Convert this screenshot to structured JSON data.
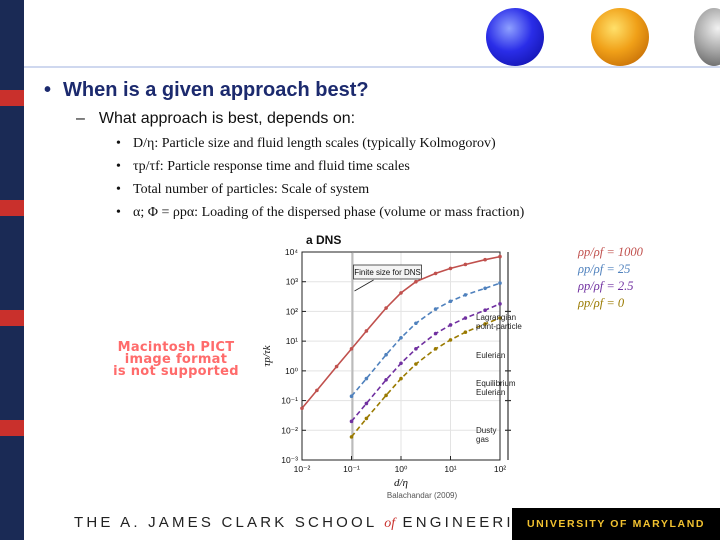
{
  "slide": {
    "bullet1": "When is a given approach best?",
    "bullet2": "What approach is best, depends on:",
    "sub_bullets": [
      "D/η: Particle size and fluid length scales (typically Kolmogorov)",
      "τp/τf: Particle response time and fluid time scales",
      "Total number of particles: Scale of system",
      "α; Φ = ρpα: Loading of the dispersed phase (volume or mass fraction)"
    ],
    "pict_notice": [
      "Macintosh PICT",
      "image format",
      "is not supported"
    ],
    "legend": [
      {
        "label": "ρp/ρf = 1000",
        "color": "#c0504d"
      },
      {
        "label": "ρp/ρf = 25",
        "color": "#4f81bd"
      },
      {
        "label": "ρp/ρf = 2.5",
        "color": "#7030a0"
      },
      {
        "label": "ρp/ρf = 0",
        "color": "#9a7a00"
      }
    ],
    "credit": "Balachandar (2009)",
    "footer_left_a": "THE A. JAMES CLARK SCHOOL",
    "footer_left_of": "of",
    "footer_left_b": "ENGINEERING",
    "footer_right": "UNIVERSITY OF MARYLAND"
  },
  "chart_data": {
    "type": "line",
    "title": "a  DNS",
    "xlabel": "d/η",
    "ylabel": "τp/τk",
    "xscale": "log",
    "yscale": "log",
    "xlim": [
      0.01,
      100
    ],
    "ylim": [
      0.001,
      10000
    ],
    "x_ticks": [
      "10⁻²",
      "10⁻¹",
      "10⁰",
      "10¹",
      "10²"
    ],
    "y_ticks": [
      "10⁴",
      "10³",
      "10²",
      "10¹",
      "10⁰",
      "10⁻¹",
      "10⁻²",
      "10⁻³"
    ],
    "annotation_box": "Finite size for DNS",
    "regions": [
      "Lagrangian point-particle",
      "Eulerian",
      "Equilibrium Eulerian",
      "Dusty gas"
    ],
    "series": [
      {
        "color": "#c0504d",
        "dash": "solid",
        "x": [
          0.01,
          0.02,
          0.05,
          0.1,
          0.2,
          0.5,
          1,
          2,
          5,
          10,
          20,
          50,
          100
        ],
        "y": [
          0.055,
          0.22,
          1.4,
          5.5,
          22,
          130,
          420,
          1000,
          1900,
          2800,
          3800,
          5500,
          7000
        ]
      },
      {
        "color": "#4f81bd",
        "dash": "dashed",
        "x": [
          0.1,
          0.2,
          0.5,
          1,
          2,
          5,
          10,
          20,
          50,
          100
        ],
        "y": [
          0.14,
          0.55,
          3.5,
          13,
          40,
          120,
          220,
          360,
          600,
          900
        ]
      },
      {
        "color": "#7030a0",
        "dash": "dashed",
        "x": [
          0.1,
          0.2,
          0.5,
          1,
          2,
          5,
          10,
          20,
          50,
          100
        ],
        "y": [
          0.02,
          0.08,
          0.5,
          1.8,
          5.5,
          18,
          35,
          60,
          110,
          180
        ]
      },
      {
        "color": "#9a7a00",
        "dash": "dashed",
        "x": [
          0.1,
          0.2,
          0.5,
          1,
          2,
          5,
          10,
          20,
          50,
          100
        ],
        "y": [
          0.006,
          0.025,
          0.15,
          0.55,
          1.7,
          5.5,
          11,
          20,
          38,
          60
        ]
      }
    ]
  }
}
